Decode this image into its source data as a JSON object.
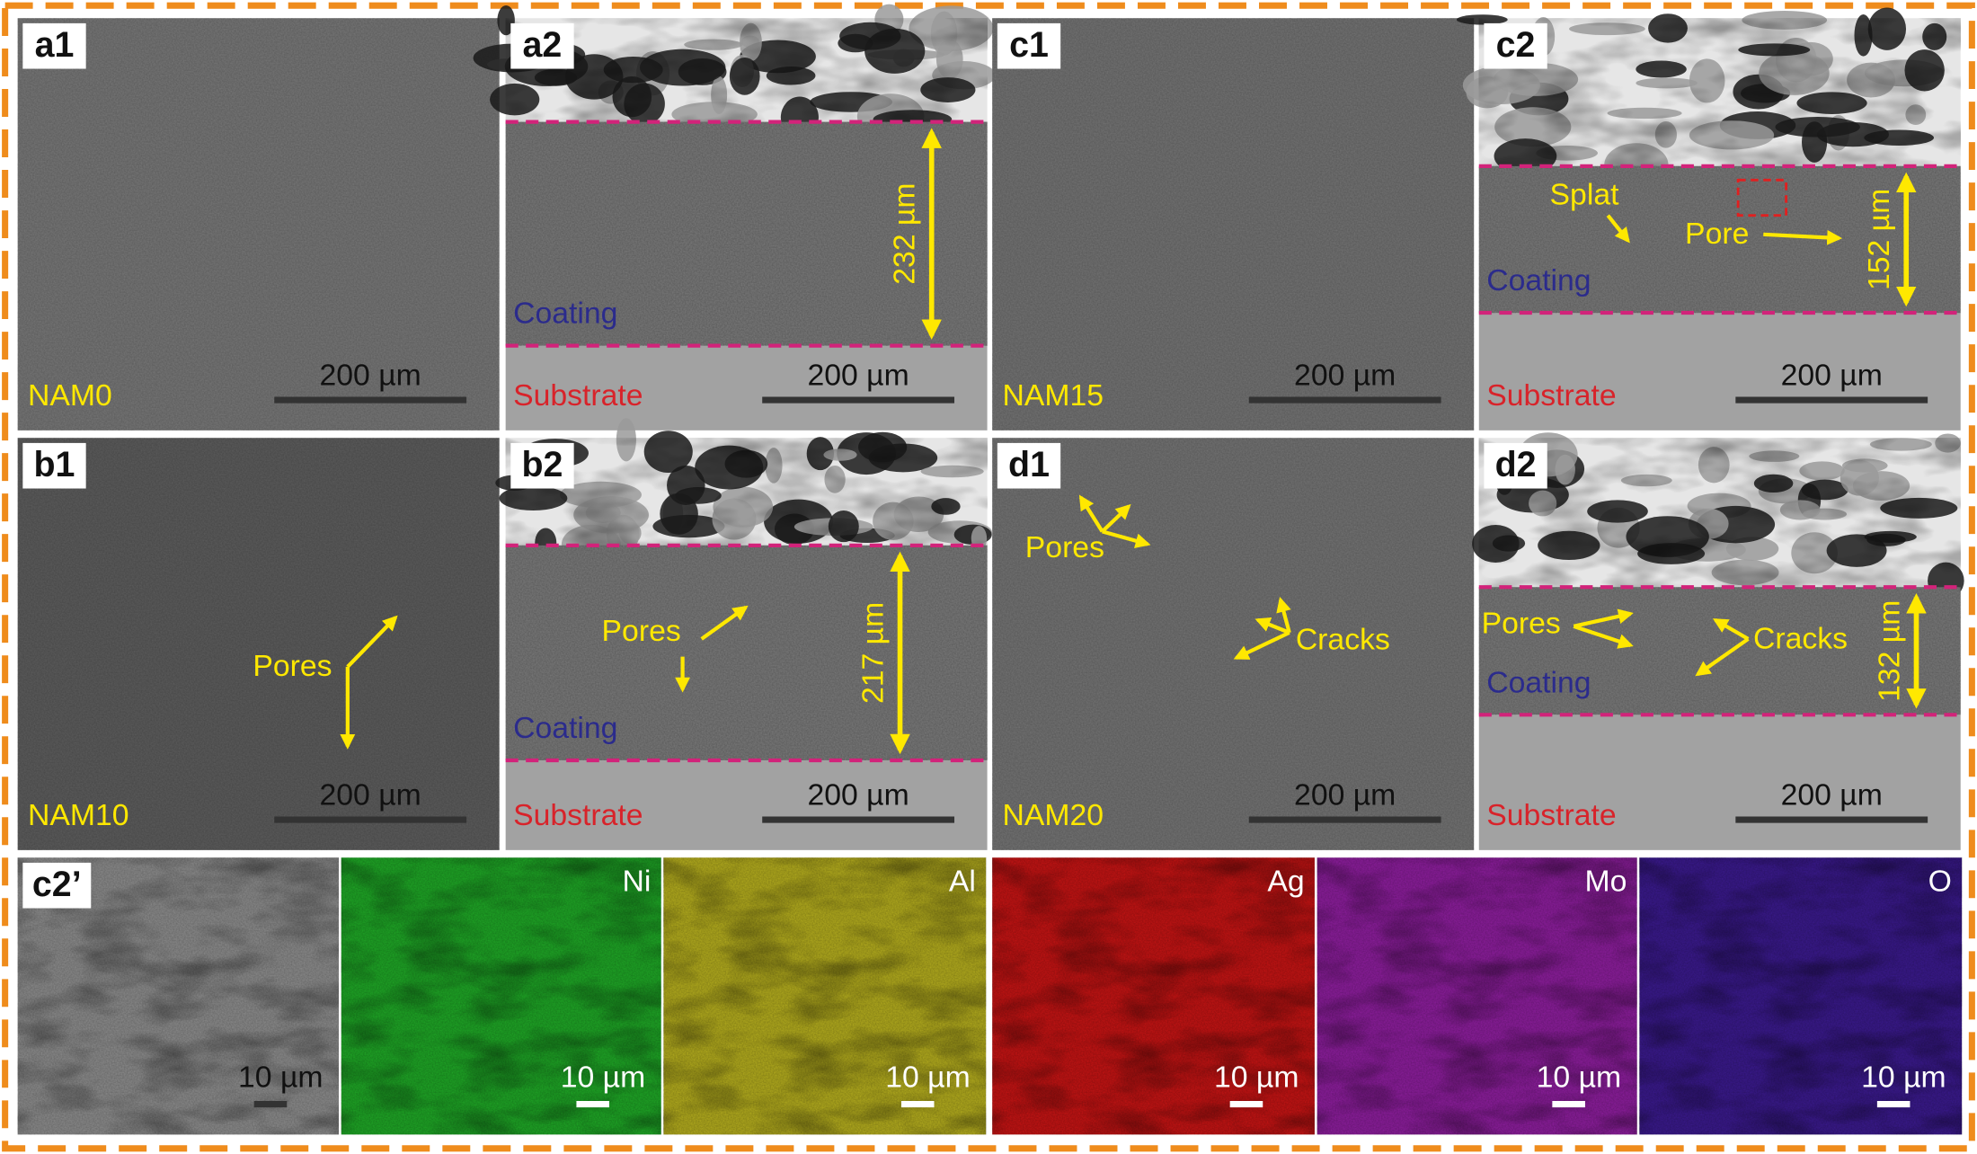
{
  "panels": [
    {
      "label": "a1",
      "sample": "NAM0",
      "scale_bar": "200 µm"
    },
    {
      "label": "a2",
      "thickness": "232 µm",
      "coating": "Coating",
      "substrate": "Substrate",
      "scale_bar": "200 µm"
    },
    {
      "label": "c1",
      "sample": "NAM15",
      "scale_bar": "200 µm"
    },
    {
      "label": "c2",
      "thickness": "152 µm",
      "coating": "Coating",
      "substrate": "Substrate",
      "scale_bar": "200 µm",
      "annotations": [
        "Splat",
        "Pore"
      ]
    },
    {
      "label": "b1",
      "sample": "NAM10",
      "scale_bar": "200 µm",
      "annotations": [
        "Pores"
      ]
    },
    {
      "label": "b2",
      "thickness": "217 µm",
      "coating": "Coating",
      "substrate": "Substrate",
      "scale_bar": "200 µm",
      "annotations": [
        "Pores"
      ]
    },
    {
      "label": "d1",
      "sample": "NAM20",
      "scale_bar": "200 µm",
      "annotations": [
        "Pores",
        "Cracks"
      ]
    },
    {
      "label": "d2",
      "thickness": "132 µm",
      "coating": "Coating",
      "substrate": "Substrate",
      "scale_bar": "200 µm",
      "annotations": [
        "Pores",
        "Cracks"
      ]
    }
  ],
  "eds": {
    "label": "c2’",
    "maps": [
      {
        "scale_bar": "10 µm",
        "color": "#8c8c8c"
      },
      {
        "element": "Ni",
        "scale_bar": "10 µm",
        "color": "#1fa626"
      },
      {
        "element": "Al",
        "scale_bar": "10 µm",
        "color": "#b3ac1e"
      },
      {
        "element": "Ag",
        "scale_bar": "10 µm",
        "color": "#c41414"
      },
      {
        "element": "Mo",
        "scale_bar": "10 µm",
        "color": "#8c1e9c"
      },
      {
        "element": "O",
        "scale_bar": "10 µm",
        "color": "#3a1a8c"
      }
    ]
  }
}
